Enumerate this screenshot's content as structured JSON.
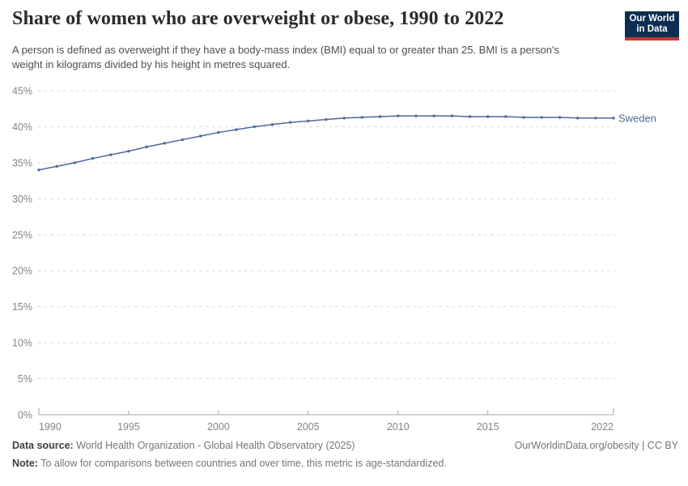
{
  "header": {
    "logo": {
      "line1": "Our World",
      "line2": "in Data",
      "bg_color": "#0d2e51",
      "accent_color": "#c5392f"
    }
  },
  "chart_data": {
    "type": "line",
    "title": "Share of women who are overweight or obese, 1990 to 2022",
    "subtitle": "A person is defined as overweight if they have a body-mass index (BMI) equal to or greater than 25. BMI is a person's weight in kilograms divided by his height in metres squared.",
    "xlabel": "",
    "ylabel": "",
    "xlim": [
      1990,
      2022
    ],
    "ylim": [
      0,
      45
    ],
    "x_ticks": [
      1990,
      1995,
      2000,
      2005,
      2010,
      2015,
      2022
    ],
    "y_ticks": [
      0,
      5,
      10,
      15,
      20,
      25,
      30,
      35,
      40,
      45
    ],
    "y_tick_suffix": "%",
    "grid": "horizontal-dashed",
    "legend_position": "end-of-line-label",
    "series": [
      {
        "name": "Sweden",
        "color": "#4c6a9c",
        "x": [
          1990,
          1991,
          1992,
          1993,
          1994,
          1995,
          1996,
          1997,
          1998,
          1999,
          2000,
          2001,
          2002,
          2003,
          2004,
          2005,
          2006,
          2007,
          2008,
          2009,
          2010,
          2011,
          2012,
          2013,
          2014,
          2015,
          2016,
          2017,
          2018,
          2019,
          2020,
          2021,
          2022
        ],
        "values": [
          34.0,
          34.5,
          35.0,
          35.6,
          36.1,
          36.6,
          37.2,
          37.7,
          38.2,
          38.7,
          39.2,
          39.6,
          40.0,
          40.3,
          40.6,
          40.8,
          41.0,
          41.2,
          41.3,
          41.4,
          41.5,
          41.5,
          41.5,
          41.5,
          41.4,
          41.4,
          41.4,
          41.3,
          41.3,
          41.3,
          41.2,
          41.2,
          41.2
        ]
      }
    ],
    "colors": {
      "grid": "#dcdcdc",
      "axis": "#a5a5a5",
      "tick_label": "#848484"
    }
  },
  "footer": {
    "source_label": "Data source:",
    "source_text": " World Health Organization - Global Health Observatory (2025)",
    "right_text": "OurWorldinData.org/obesity | CC BY",
    "note_label": "Note:",
    "note_text": " To allow for comparisons between countries and over time, this metric is age-standardized."
  }
}
